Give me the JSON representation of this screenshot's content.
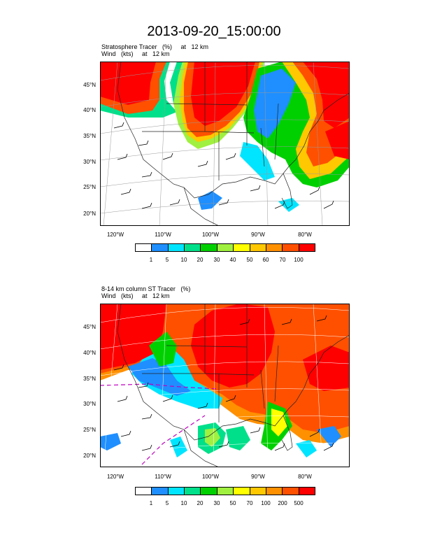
{
  "figure": {
    "title": "2013-09-20_15:00:00"
  },
  "panels": [
    {
      "line1": "Stratosphere Tracer   (%)     at   12 km",
      "line2": "Wind   (kts)     at   12 km",
      "lat_labels": [
        "45°N",
        "40°N",
        "35°N",
        "30°N",
        "25°N",
        "20°N"
      ],
      "lon_labels": [
        "120°W",
        "110°W",
        "100°W",
        "90°W",
        "80°W"
      ],
      "colorbar_labels": [
        "1",
        "5",
        "10",
        "20",
        "30",
        "40",
        "50",
        "60",
        "70",
        "100"
      ]
    },
    {
      "line1": "8-14 km column ST Tracer   (%)",
      "line2": "Wind   (kts)     at   12 km",
      "lat_labels": [
        "45°N",
        "40°N",
        "35°N",
        "30°N",
        "25°N",
        "20°N"
      ],
      "lon_labels": [
        "120°W",
        "110°W",
        "100°W",
        "90°W",
        "80°W"
      ],
      "colorbar_labels": [
        "1",
        "5",
        "10",
        "20",
        "30",
        "50",
        "70",
        "100",
        "200",
        "500"
      ]
    }
  ],
  "colorbar_colors": [
    "#ffffff",
    "#1f8fff",
    "#00e5ff",
    "#00e08a",
    "#00d000",
    "#a0f040",
    "#ffff00",
    "#ffc800",
    "#ff9000",
    "#ff5000",
    "#ff0000"
  ]
}
